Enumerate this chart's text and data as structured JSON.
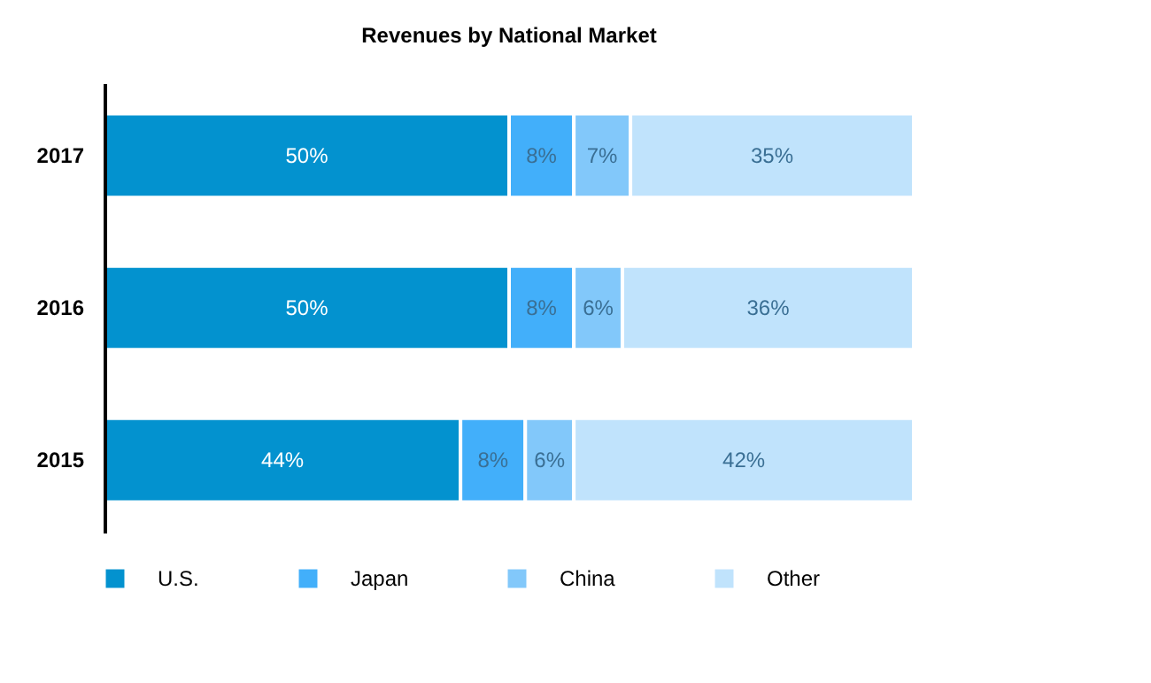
{
  "chart_data": {
    "type": "bar",
    "title": "Revenues by National Market",
    "orientation": "horizontal",
    "stacked": true,
    "categories": [
      "2017",
      "2016",
      "2015"
    ],
    "series": [
      {
        "name": "U.S.",
        "color": "#0392cf",
        "values": [
          50,
          50,
          44
        ],
        "value_labels": [
          "50%",
          "50%",
          "44%"
        ]
      },
      {
        "name": "Japan",
        "color": "#42affa",
        "values": [
          8,
          8,
          8
        ],
        "value_labels": [
          "8%",
          "8%",
          "8%"
        ]
      },
      {
        "name": "China",
        "color": "#82c8fa",
        "values": [
          7,
          6,
          6
        ],
        "value_labels": [
          "7%",
          "6%",
          "6%"
        ]
      },
      {
        "name": "Other",
        "color": "#c0e3fc",
        "values": [
          35,
          36,
          42
        ],
        "value_labels": [
          "35%",
          "36%",
          "42%"
        ]
      }
    ],
    "legend": "bottom",
    "tick_labels": "y"
  }
}
